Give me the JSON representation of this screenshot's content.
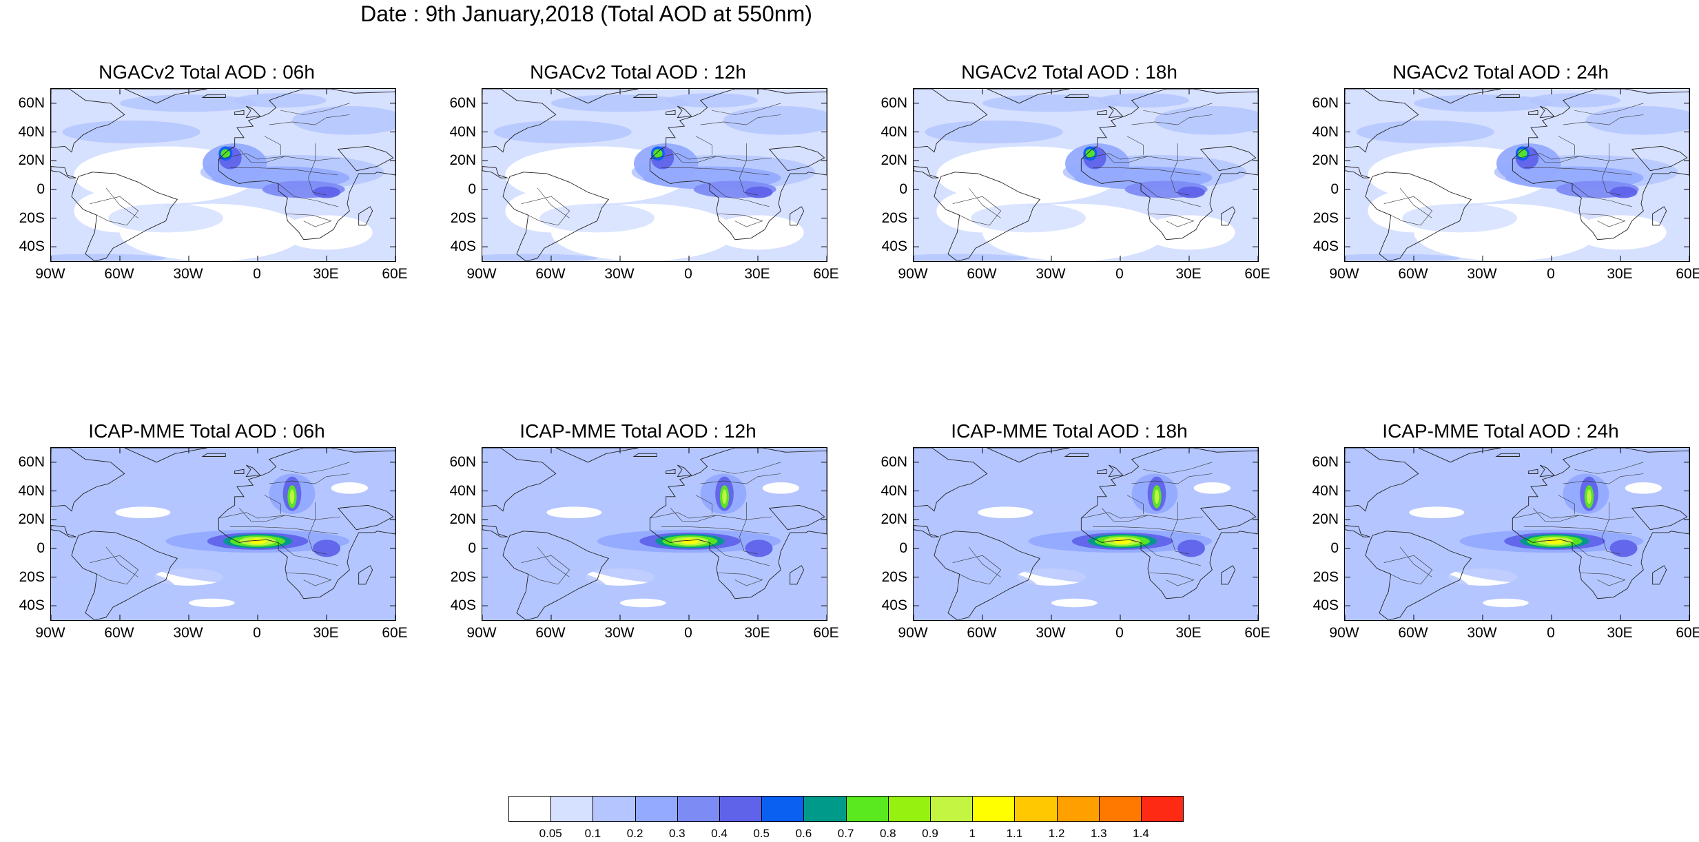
{
  "title": "Date : 9th January,2018 (Total AOD at 550nm)",
  "axes": {
    "lat_labels": [
      "60N",
      "40N",
      "20N",
      "0",
      "20S",
      "40S"
    ],
    "lon_labels": [
      "90W",
      "60W",
      "30W",
      "0",
      "30E",
      "60E"
    ],
    "lat_values": [
      60,
      40,
      20,
      0,
      -20,
      -40
    ],
    "lon_values": [
      -90,
      -60,
      -30,
      0,
      30,
      60
    ],
    "lat_range": [
      -50,
      70
    ],
    "lon_range": [
      -90,
      60
    ]
  },
  "panels": [
    {
      "title": "NGACv2 Total AOD : 06h"
    },
    {
      "title": "NGACv2 Total AOD : 12h"
    },
    {
      "title": "NGACv2 Total AOD : 18h"
    },
    {
      "title": "NGACv2 Total AOD : 24h"
    },
    {
      "title": "ICAP-MME Total AOD : 06h"
    },
    {
      "title": "ICAP-MME Total AOD : 12h"
    },
    {
      "title": "ICAP-MME Total AOD : 18h"
    },
    {
      "title": "ICAP-MME Total AOD : 24h"
    }
  ],
  "colorbar": {
    "colors": [
      "#ffffff",
      "#d6e0ff",
      "#b4c5ff",
      "#94aaff",
      "#7d8bf5",
      "#5f63ea",
      "#0a60f0",
      "#009a8a",
      "#5ae81e",
      "#96f010",
      "#c3f542",
      "#ffff00",
      "#ffc800",
      "#ffa000",
      "#ff7800",
      "#ff2a14"
    ],
    "labels": [
      "0.05",
      "0.1",
      "0.2",
      "0.3",
      "0.4",
      "0.5",
      "0.6",
      "0.7",
      "0.8",
      "0.9",
      "1",
      "1.1",
      "1.2",
      "1.3",
      "1.4"
    ]
  }
}
